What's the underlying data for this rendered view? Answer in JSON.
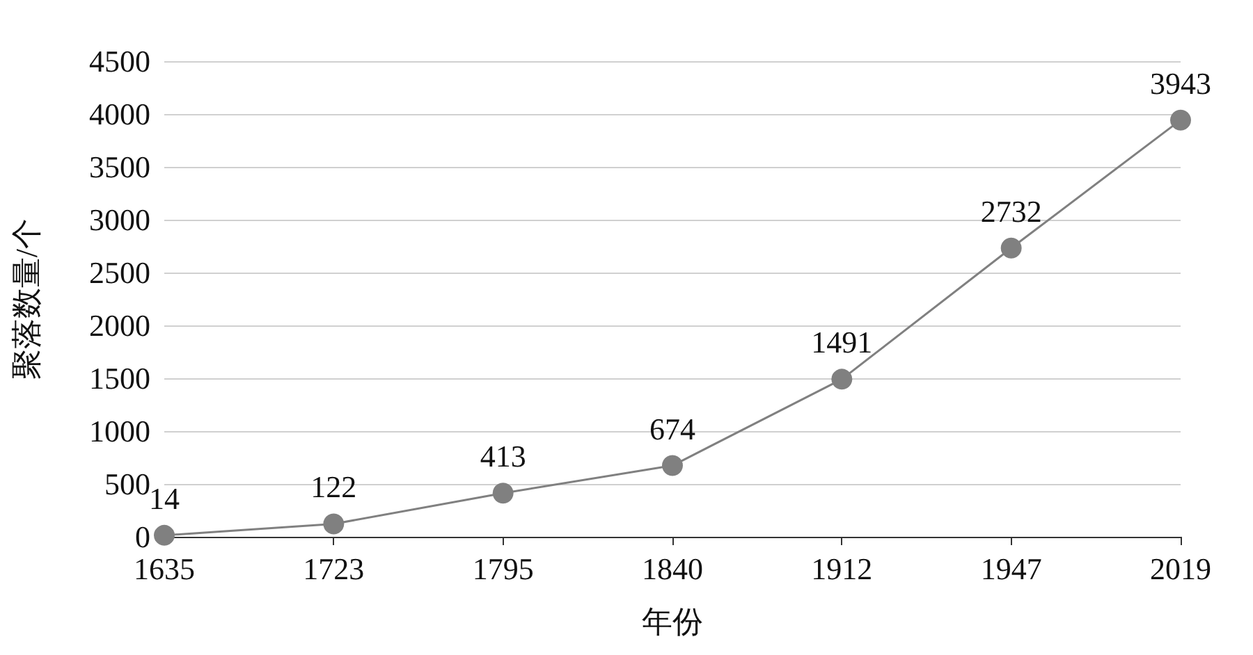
{
  "chart_data": {
    "type": "line",
    "xlabel": "年份",
    "ylabel": "聚落数量/个",
    "categories": [
      "1635",
      "1723",
      "1795",
      "1840",
      "1912",
      "1947",
      "2019"
    ],
    "series": [
      {
        "color": "#808080",
        "values": [
          14,
          122,
          413,
          674,
          1491,
          2732,
          3943
        ]
      }
    ],
    "ylim": [
      0,
      4500
    ],
    "yticks": [
      0,
      500,
      1000,
      1500,
      2000,
      2500,
      3000,
      3500,
      4000,
      4500
    ],
    "grid": "y",
    "marker": "circle",
    "line_style": "solid",
    "data_labels": true
  }
}
